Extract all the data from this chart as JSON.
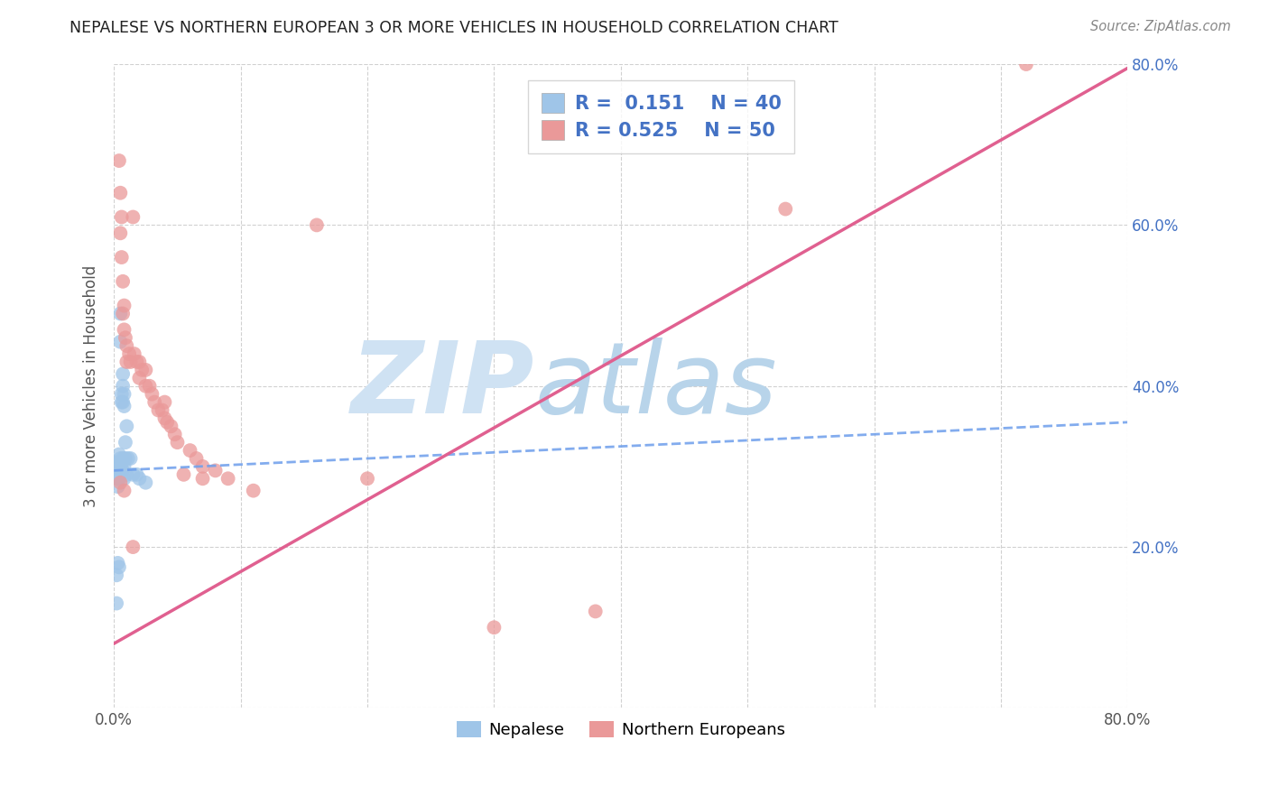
{
  "title": "NEPALESE VS NORTHERN EUROPEAN 3 OR MORE VEHICLES IN HOUSEHOLD CORRELATION CHART",
  "source": "Source: ZipAtlas.com",
  "ylabel": "3 or more Vehicles in Household",
  "xlim": [
    0.0,
    0.8
  ],
  "ylim": [
    0.0,
    0.8
  ],
  "blue_color": "#9fc5e8",
  "pink_color": "#ea9999",
  "blue_line_color": "#6d9eeb",
  "pink_line_color": "#e06090",
  "watermark_zip": "ZIP",
  "watermark_atlas": "atlas",
  "watermark_color_zip": "#cfe2f3",
  "watermark_color_atlas": "#b8cfe8",
  "nepalese_x": [
    0.002,
    0.003,
    0.003,
    0.003,
    0.004,
    0.004,
    0.004,
    0.004,
    0.005,
    0.005,
    0.005,
    0.005,
    0.005,
    0.006,
    0.006,
    0.006,
    0.006,
    0.007,
    0.007,
    0.007,
    0.007,
    0.007,
    0.008,
    0.008,
    0.008,
    0.008,
    0.009,
    0.009,
    0.01,
    0.01,
    0.011,
    0.013,
    0.015,
    0.018,
    0.02,
    0.025,
    0.002,
    0.003,
    0.004,
    0.002
  ],
  "nepalese_y": [
    0.305,
    0.295,
    0.285,
    0.275,
    0.315,
    0.305,
    0.295,
    0.285,
    0.49,
    0.455,
    0.31,
    0.3,
    0.29,
    0.39,
    0.38,
    0.305,
    0.295,
    0.415,
    0.4,
    0.38,
    0.31,
    0.295,
    0.39,
    0.375,
    0.3,
    0.285,
    0.33,
    0.31,
    0.35,
    0.29,
    0.31,
    0.31,
    0.29,
    0.29,
    0.285,
    0.28,
    0.13,
    0.18,
    0.175,
    0.165
  ],
  "northern_x": [
    0.004,
    0.005,
    0.005,
    0.006,
    0.006,
    0.007,
    0.007,
    0.008,
    0.008,
    0.009,
    0.01,
    0.01,
    0.012,
    0.013,
    0.015,
    0.016,
    0.018,
    0.02,
    0.02,
    0.022,
    0.025,
    0.025,
    0.028,
    0.03,
    0.032,
    0.035,
    0.038,
    0.04,
    0.042,
    0.045,
    0.048,
    0.05,
    0.06,
    0.065,
    0.07,
    0.08,
    0.09,
    0.11,
    0.16,
    0.2,
    0.005,
    0.008,
    0.015,
    0.04,
    0.055,
    0.07,
    0.3,
    0.38,
    0.53,
    0.72
  ],
  "northern_y": [
    0.68,
    0.64,
    0.59,
    0.61,
    0.56,
    0.53,
    0.49,
    0.5,
    0.47,
    0.46,
    0.45,
    0.43,
    0.44,
    0.43,
    0.61,
    0.44,
    0.43,
    0.43,
    0.41,
    0.42,
    0.42,
    0.4,
    0.4,
    0.39,
    0.38,
    0.37,
    0.37,
    0.36,
    0.355,
    0.35,
    0.34,
    0.33,
    0.32,
    0.31,
    0.3,
    0.295,
    0.285,
    0.27,
    0.6,
    0.285,
    0.28,
    0.27,
    0.2,
    0.38,
    0.29,
    0.285,
    0.1,
    0.12,
    0.62,
    0.8
  ],
  "blue_line_x": [
    0.0,
    0.8
  ],
  "blue_line_y": [
    0.295,
    0.355
  ],
  "pink_line_x": [
    0.0,
    0.8
  ],
  "pink_line_y": [
    0.08,
    0.795
  ]
}
